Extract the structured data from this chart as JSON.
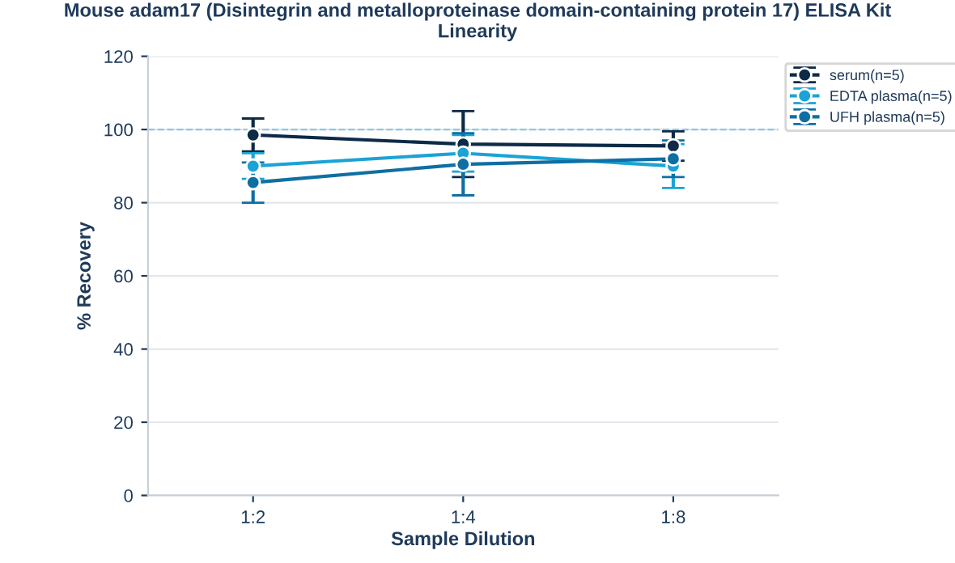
{
  "chart_data": {
    "type": "line",
    "title": "Mouse adam17 (Disintegrin and metalloproteinase domain-containing protein 17) ELISA Kit\nLinearity",
    "xlabel": "Sample Dilution",
    "ylabel": "% Recovery",
    "categories": [
      "1:2",
      "1:4",
      "1:8"
    ],
    "series": [
      {
        "name": "serum(n=5)",
        "color": "#0d2a47",
        "values": [
          98.5,
          96,
          95.5
        ],
        "errors": [
          4.5,
          9,
          4
        ]
      },
      {
        "name": "EDTA plasma(n=5)",
        "color": "#1ba3d6",
        "values": [
          90,
          93.5,
          90
        ],
        "errors": [
          3.5,
          5,
          6
        ]
      },
      {
        "name": "UFH plasma(n=5)",
        "color": "#0f6fa3",
        "values": [
          85.5,
          90.5,
          92
        ],
        "errors": [
          5.5,
          8.5,
          5
        ]
      }
    ],
    "ylim": [
      0,
      120
    ],
    "yticks": [
      0,
      20,
      40,
      60,
      80,
      100,
      120
    ],
    "ref_lines": [
      {
        "axis": "y",
        "value": 100,
        "color": "#8fc8dd",
        "line_style": "dashed"
      }
    ],
    "grid": "y",
    "legend": "top right",
    "marker": "circle",
    "line_style": "solid"
  }
}
